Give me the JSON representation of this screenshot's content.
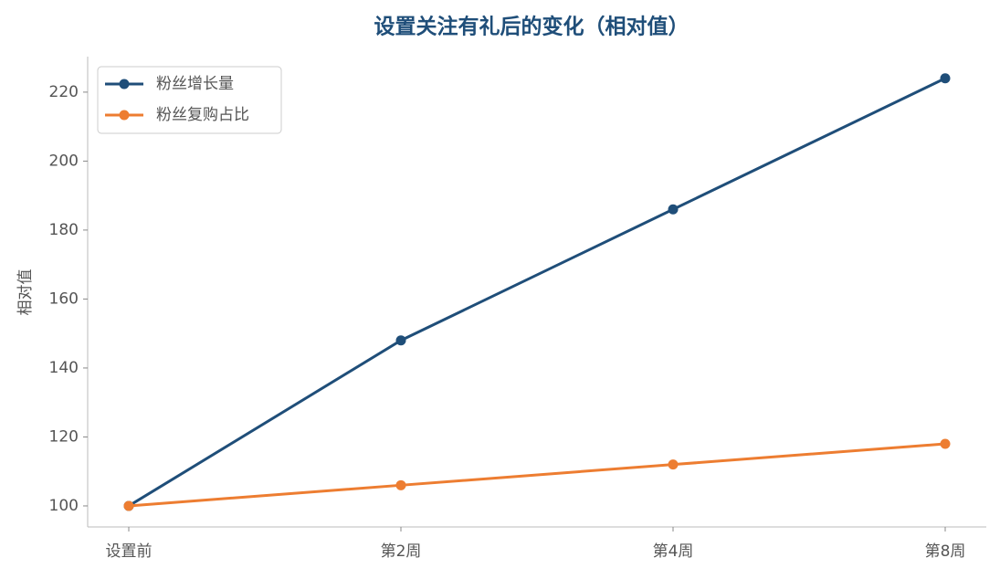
{
  "chart_data": {
    "type": "line",
    "title": "设置关注有礼后的变化（相对值）",
    "y_label": "相对值",
    "categories": [
      "设置前",
      "第2周",
      "第4周",
      "第8周"
    ],
    "series": [
      {
        "name": "粉丝增长量",
        "color": "#1f4e79",
        "values": [
          100,
          148,
          186,
          224
        ]
      },
      {
        "name": "粉丝复购占比",
        "color": "#ed7d31",
        "values": [
          100,
          106,
          112,
          118
        ]
      }
    ],
    "ylim": [
      93.9,
      230.3
    ],
    "yticks": [
      100,
      120,
      140,
      160,
      180,
      200,
      220
    ],
    "legend": "upper left",
    "grid": false
  }
}
